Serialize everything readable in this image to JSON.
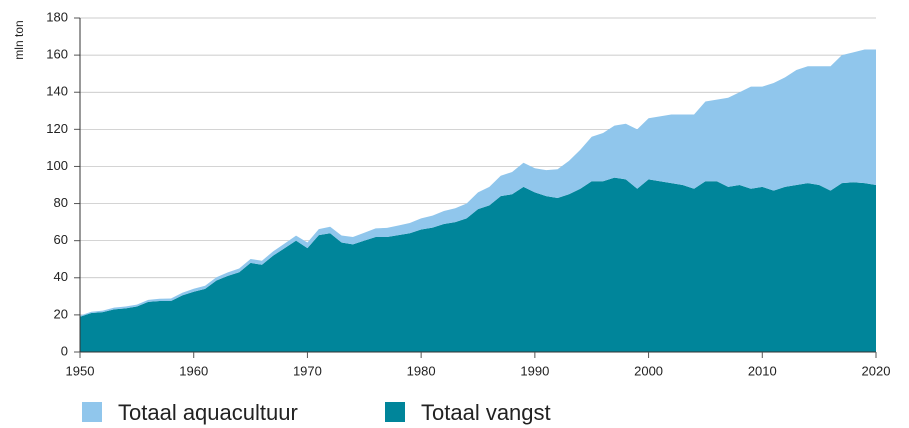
{
  "chart_data": {
    "type": "area",
    "y_label": "mln ton",
    "x": [
      1950,
      1951,
      1952,
      1953,
      1954,
      1955,
      1956,
      1957,
      1958,
      1959,
      1960,
      1961,
      1962,
      1963,
      1964,
      1965,
      1966,
      1967,
      1968,
      1969,
      1970,
      1971,
      1972,
      1973,
      1974,
      1975,
      1976,
      1977,
      1978,
      1979,
      1980,
      1981,
      1982,
      1983,
      1984,
      1985,
      1986,
      1987,
      1988,
      1989,
      1990,
      1991,
      1992,
      1993,
      1994,
      1995,
      1996,
      1997,
      1998,
      1999,
      2000,
      2001,
      2002,
      2003,
      2004,
      2005,
      2006,
      2007,
      2008,
      2009,
      2010,
      2011,
      2012,
      2013,
      2014,
      2015,
      2016,
      2017,
      2018,
      2019,
      2020
    ],
    "series": [
      {
        "name": "Totaal aquacultuur",
        "color": "#90c6ec",
        "values": [
          0.6,
          0.7,
          0.8,
          0.9,
          1,
          1,
          1.1,
          1.2,
          1.3,
          1.4,
          1.6,
          1.7,
          1.8,
          1.9,
          2,
          2.1,
          2.2,
          2.3,
          2.5,
          2.7,
          3,
          3.2,
          3.5,
          3.8,
          4,
          4.3,
          4.6,
          4.9,
          5.2,
          5.5,
          6,
          6.5,
          7,
          7.5,
          8,
          9,
          10,
          11,
          12,
          13,
          13,
          14,
          15.5,
          18,
          21,
          24,
          26,
          28,
          30,
          32,
          33,
          35,
          37,
          38,
          40,
          43,
          44,
          48,
          50,
          55,
          54,
          58,
          59,
          62,
          63,
          64,
          67,
          69,
          70,
          72,
          73
        ]
      },
      {
        "name": "Totaal vangst",
        "color": "#00859a",
        "values": [
          19,
          21,
          21.5,
          23,
          23.5,
          24.5,
          27,
          27.5,
          27.5,
          30.5,
          32.5,
          34,
          38.5,
          41,
          43,
          48,
          47,
          52,
          56,
          60,
          56,
          63,
          64,
          59,
          58,
          60,
          62,
          62,
          63,
          64,
          66,
          67,
          69,
          70,
          72,
          77,
          79,
          84,
          85,
          89,
          86,
          84,
          83,
          85,
          88,
          92,
          92,
          94,
          93,
          88,
          93,
          92,
          91,
          90,
          88,
          92,
          92,
          89,
          90,
          88,
          89,
          87,
          89,
          90,
          91,
          90,
          87,
          91,
          91.5,
          91,
          90
        ]
      }
    ],
    "xlim": [
      1950,
      2020
    ],
    "xticks": [
      1950,
      1960,
      1970,
      1980,
      1990,
      2000,
      2010,
      2020
    ],
    "ylim": [
      0,
      180
    ],
    "yticks": [
      0,
      20,
      40,
      60,
      80,
      100,
      120,
      140,
      160,
      180
    ],
    "grid": true
  }
}
